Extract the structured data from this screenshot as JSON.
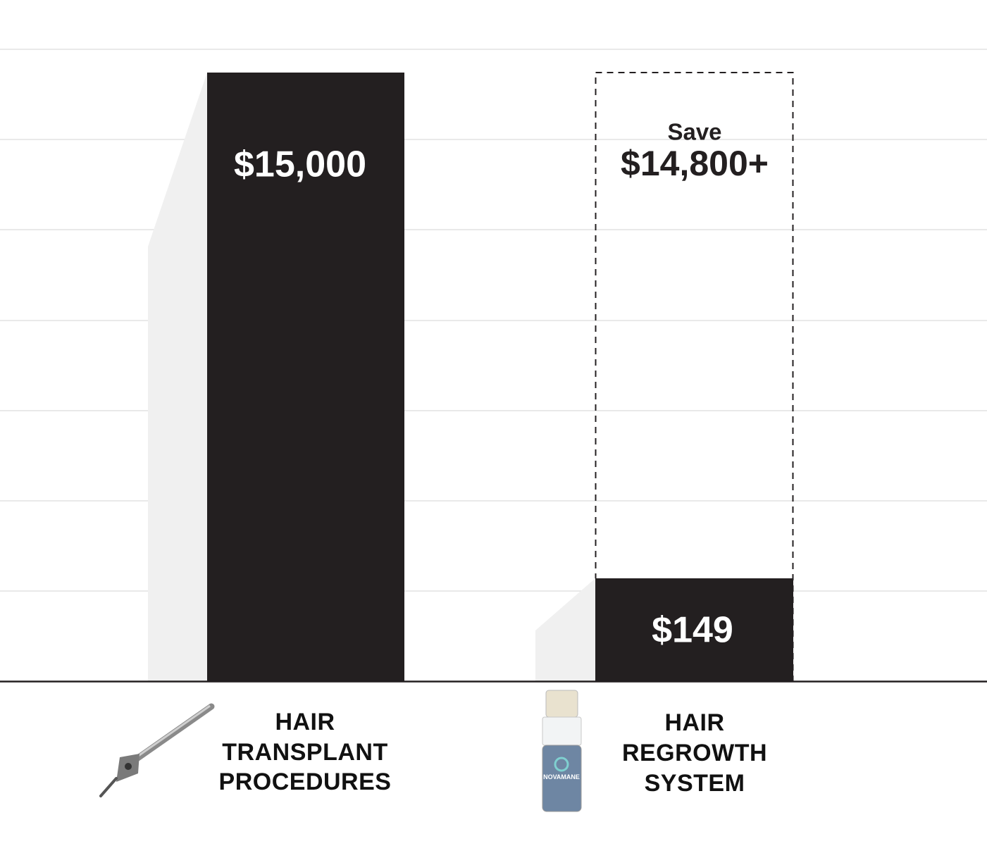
{
  "bars": [
    {
      "price": "$15,000",
      "label": [
        "HAIR",
        "TRANSPLANT",
        "PROCEDURES"
      ]
    },
    {
      "price": "$149",
      "label": [
        "HAIR",
        "REGROWTH",
        "SYSTEM"
      ]
    }
  ],
  "savings": {
    "prefix": "Save",
    "amount": "$14,800+"
  },
  "product_brand": "NOVAMANE"
}
